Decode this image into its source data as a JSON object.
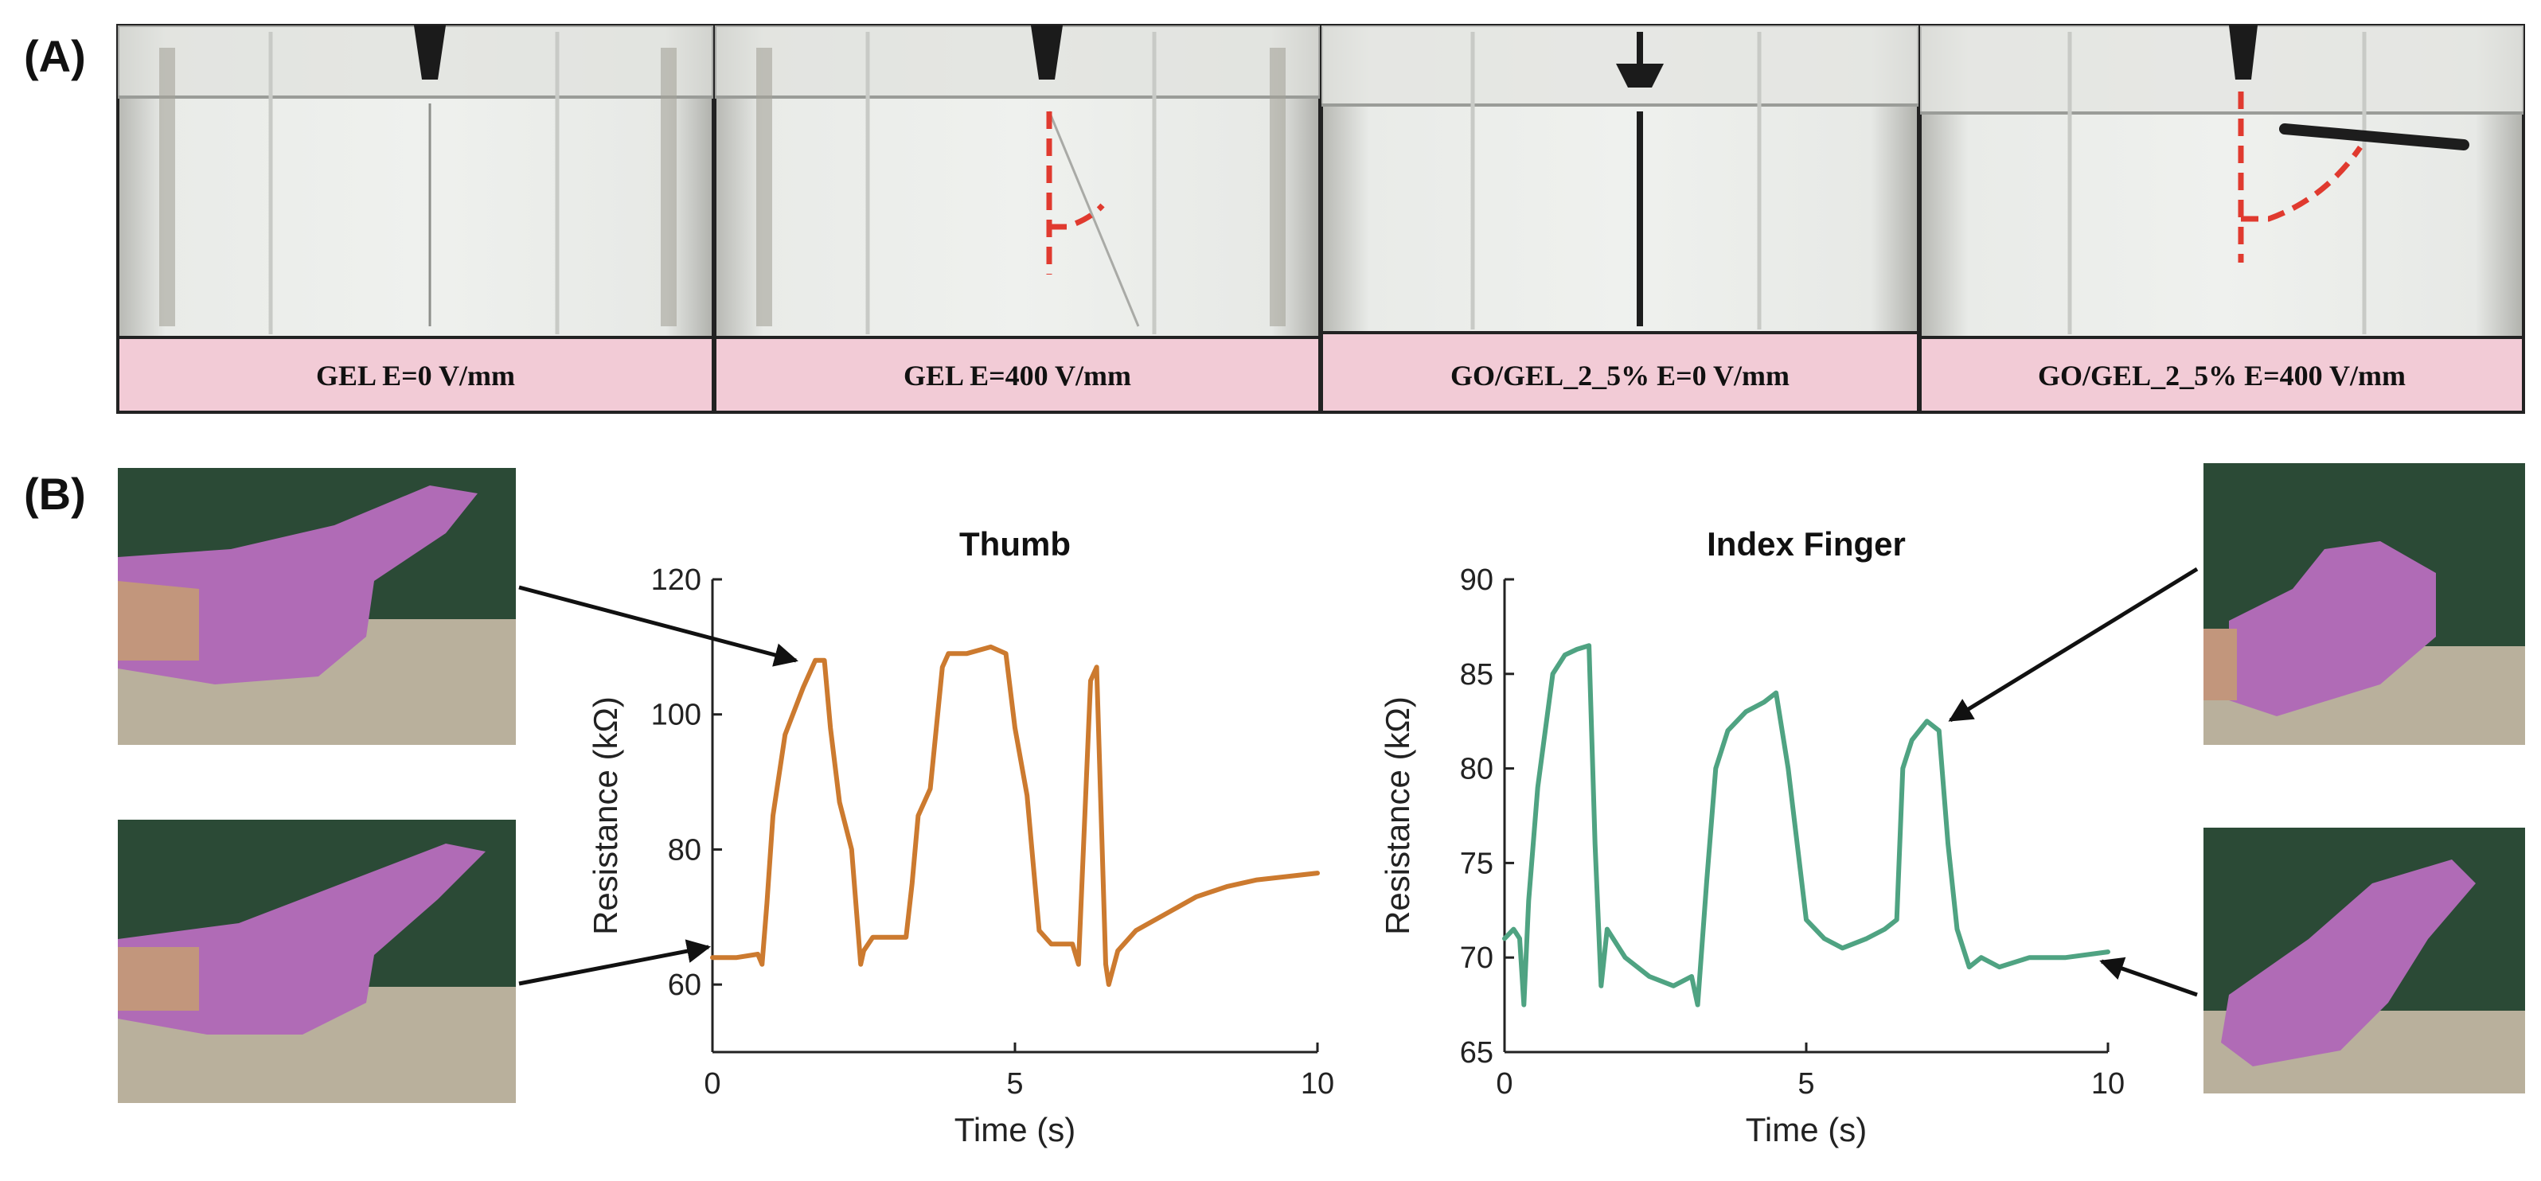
{
  "panel_labels": {
    "a": "(A)",
    "b": "(B)"
  },
  "photos": [
    {
      "caption": "GEL E=0 V/mm"
    },
    {
      "caption": "GEL E=400 V/mm"
    },
    {
      "caption": "GO/GEL_2_5% E=0 V/mm"
    },
    {
      "caption": "GO/GEL_2_5% E=400 V/mm"
    }
  ],
  "colors": {
    "thumb_line": "#cc7a2f",
    "index_line": "#4fa382",
    "caption_bg": "#f2cbd6",
    "glove": "#b06bb6",
    "dashed_marker": "#e03a2f"
  },
  "chart_data": [
    {
      "type": "line",
      "title": "Thumb",
      "xlabel": "Time (s)",
      "ylabel": "Resistance (kΩ)",
      "xlim": [
        0,
        10
      ],
      "ylim": [
        50,
        120
      ],
      "xticks": [
        0,
        5,
        10
      ],
      "yticks": [
        60,
        80,
        100,
        120
      ],
      "series": [
        {
          "x": [
            0,
            0.4,
            0.75,
            0.82,
            0.9,
            1.0,
            1.2,
            1.5,
            1.7,
            1.85,
            1.95,
            2.1,
            2.3,
            2.45,
            2.5,
            2.65,
            3.0,
            3.2,
            3.3,
            3.4,
            3.6,
            3.8,
            3.9,
            4.2,
            4.6,
            4.85,
            5.0,
            5.2,
            5.4,
            5.6,
            5.95,
            6.05,
            6.25,
            6.35,
            6.5,
            6.55,
            6.7,
            7.0,
            7.2,
            7.6,
            8.0,
            8.5,
            9.0,
            9.5,
            10.0
          ],
          "y": [
            64,
            64,
            64.5,
            63,
            72,
            85,
            97,
            104,
            108,
            108,
            98,
            87,
            80,
            63,
            65,
            67,
            67,
            67,
            75,
            85,
            89,
            107,
            109,
            109,
            110,
            109,
            98,
            88,
            68,
            66,
            66,
            63,
            105,
            107,
            63,
            60,
            65,
            68,
            69,
            71,
            73,
            74.5,
            75.5,
            76,
            76.5
          ]
        }
      ]
    },
    {
      "type": "line",
      "title": "Index Finger",
      "xlabel": "Time (s)",
      "ylabel": "Resistance (kΩ)",
      "xlim": [
        0,
        10
      ],
      "ylim": [
        65,
        90
      ],
      "xticks": [
        0,
        5,
        10
      ],
      "yticks": [
        65,
        70,
        75,
        80,
        85,
        90
      ],
      "series": [
        {
          "x": [
            0,
            0.15,
            0.25,
            0.32,
            0.4,
            0.55,
            0.8,
            1.0,
            1.2,
            1.4,
            1.5,
            1.6,
            1.7,
            1.8,
            2.0,
            2.4,
            2.8,
            3.1,
            3.2,
            3.35,
            3.5,
            3.7,
            4.0,
            4.3,
            4.5,
            4.7,
            5.0,
            5.3,
            5.6,
            6.0,
            6.3,
            6.5,
            6.6,
            6.75,
            7.0,
            7.2,
            7.35,
            7.5,
            7.7,
            7.9,
            8.2,
            8.7,
            9.3,
            10.0
          ],
          "y": [
            71,
            71.5,
            71,
            67.5,
            73,
            79,
            85,
            86,
            86.3,
            86.5,
            76,
            68.5,
            71.5,
            71,
            70,
            69,
            68.5,
            69,
            67.5,
            74,
            80,
            82,
            83,
            83.5,
            84,
            80,
            72,
            71,
            70.5,
            71,
            71.5,
            72,
            80,
            81.5,
            82.5,
            82,
            76,
            71.5,
            69.5,
            70,
            69.5,
            70,
            70,
            70.3
          ]
        }
      ]
    }
  ]
}
